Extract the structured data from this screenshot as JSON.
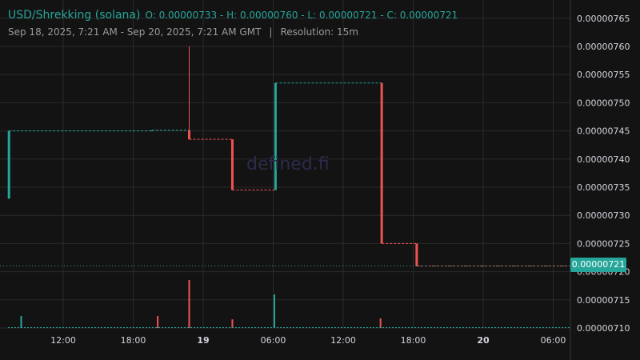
{
  "header": {
    "pair": "USD/Shrekking (solana)",
    "ohlc": "O: 0.00000733 - H: 0.00000760 - L: 0.00000721 - C: 0.00000721",
    "range": "Sep 18, 2025, 7:21 AM - Sep 20, 2025, 7:21 AM GMT",
    "separator": "|",
    "resolution": "Resolution: 15m"
  },
  "watermark": "defined.fi",
  "last_price_label": "0.00000721",
  "colors": {
    "up": "#26a69a",
    "down": "#ef5350",
    "bg": "#131313",
    "grid": "#2a2a2a",
    "text": "#d1d4dc"
  },
  "chart_data": {
    "type": "line",
    "style": "step candles with volume",
    "ylim": [
      7.1e-06,
      7.66e-06
    ],
    "y_ticks": [
      "0.00000765",
      "0.00000760",
      "0.00000755",
      "0.00000750",
      "0.00000745",
      "0.00000740",
      "0.00000735",
      "0.00000730",
      "0.00000725",
      "0.00000720",
      "0.00000715",
      "0.00000710"
    ],
    "x_ticks": [
      {
        "label": "12:00",
        "h": 12,
        "bold": false
      },
      {
        "label": "18:00",
        "h": 18,
        "bold": false
      },
      {
        "label": "19",
        "h": 24,
        "bold": true
      },
      {
        "label": "06:00",
        "h": 30,
        "bold": false
      },
      {
        "label": "12:00",
        "h": 36,
        "bold": false
      },
      {
        "label": "18:00",
        "h": 42,
        "bold": false
      },
      {
        "label": "20",
        "h": 48,
        "bold": true
      },
      {
        "label": "06:00",
        "h": 54,
        "bold": false
      }
    ],
    "grid": true,
    "last_price": 7.21e-06,
    "candles": [
      {
        "h": 7.35,
        "o": 7.33e-06,
        "c": 7.45e-06,
        "hi": 7.45e-06,
        "lo": 7.33e-06
      },
      {
        "h": 19.6,
        "o": 7.45e-06,
        "c": 7.451e-06,
        "hi": 7.451e-06,
        "lo": 7.45e-06
      },
      {
        "h": 22.8,
        "o": 7.451e-06,
        "c": 7.435e-06,
        "hi": 7.6e-06,
        "lo": 7.435e-06
      },
      {
        "h": 26.5,
        "o": 7.435e-06,
        "c": 7.345e-06,
        "hi": 7.435e-06,
        "lo": 7.345e-06
      },
      {
        "h": 30.2,
        "o": 7.345e-06,
        "c": 7.535e-06,
        "hi": 7.535e-06,
        "lo": 7.345e-06
      },
      {
        "h": 39.3,
        "o": 7.535e-06,
        "c": 7.25e-06,
        "hi": 7.535e-06,
        "lo": 7.25e-06
      },
      {
        "h": 42.3,
        "o": 7.25e-06,
        "c": 7.21e-06,
        "hi": 7.25e-06,
        "lo": 7.21e-06
      }
    ],
    "volume": [
      {
        "h": 8.4,
        "v": 0.25,
        "up": true
      },
      {
        "h": 20.1,
        "v": 0.25,
        "up": false
      },
      {
        "h": 22.8,
        "v": 1.0,
        "up": false
      },
      {
        "h": 26.5,
        "v": 0.18,
        "up": false
      },
      {
        "h": 30.1,
        "v": 0.7,
        "up": true
      },
      {
        "h": 39.2,
        "v": 0.2,
        "up": false
      }
    ]
  }
}
